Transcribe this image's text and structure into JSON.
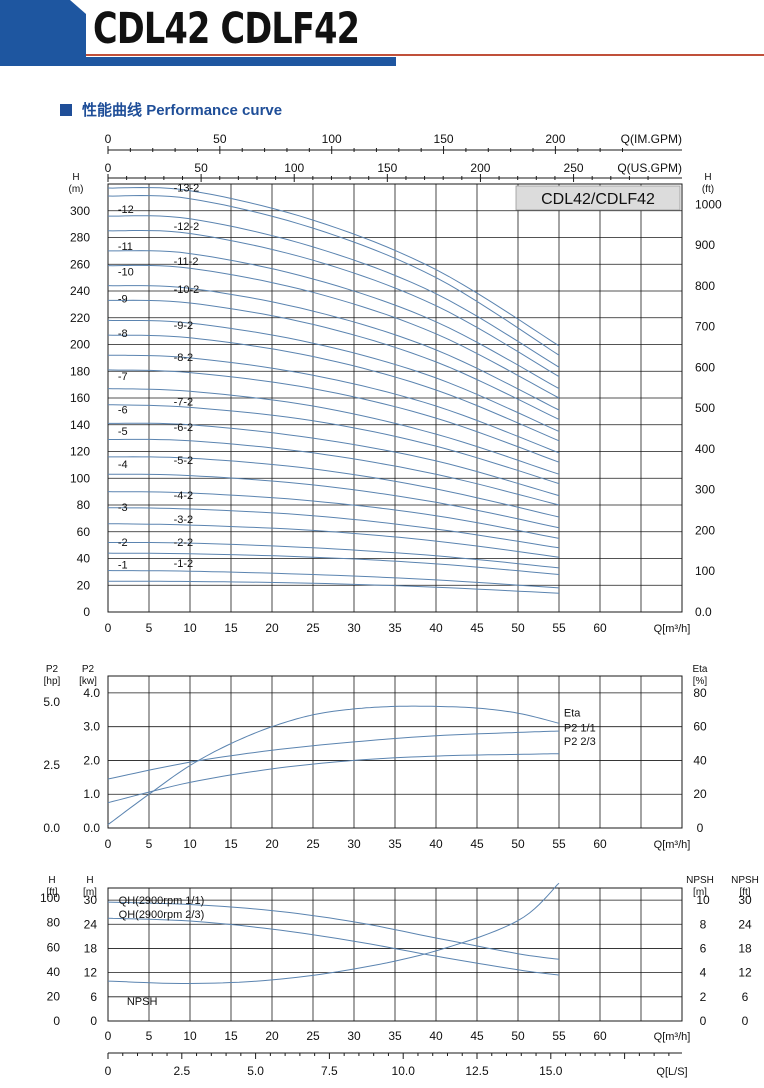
{
  "header": {
    "title": "CDL42 CDLF42"
  },
  "section": {
    "title_cn": "性能曲线",
    "title_en": "Performance curve"
  },
  "colors": {
    "curve": "#5b84b0",
    "grid": "#1a1a1a",
    "brand_blue": "#1e56a0",
    "accent_red": "#c0503a"
  },
  "chart_data": [
    {
      "type": "line",
      "model_label": "CDL42/CDLF42",
      "xlabel": "Q[m³/h]",
      "xlim": [
        0,
        70
      ],
      "x_ticks": [
        0,
        5,
        10,
        15,
        20,
        25,
        30,
        35,
        40,
        45,
        50,
        55,
        60
      ],
      "top_axis_im": {
        "label": "Q(IM.GPM)",
        "ticks": [
          0,
          50,
          100,
          150,
          200
        ]
      },
      "top_axis_us": {
        "label": "Q(US.GPM)",
        "ticks": [
          0,
          50,
          100,
          150,
          200,
          250
        ]
      },
      "y_left": {
        "label": "H",
        "unit": "(m)",
        "ticks": [
          0,
          20,
          40,
          60,
          80,
          100,
          120,
          140,
          160,
          180,
          200,
          220,
          240,
          260,
          280,
          300
        ],
        "ylim": [
          0,
          320
        ]
      },
      "y_right": {
        "label": "H",
        "unit": "(ft)",
        "tick_labels": [
          "0.0",
          "100",
          "200",
          "300",
          "400",
          "500",
          "600",
          "700",
          "800",
          "900",
          "1000"
        ]
      },
      "series": [
        {
          "name": "-1",
          "values": [
            [
              0,
              31
            ],
            [
              10,
              30.5
            ],
            [
              25,
              28
            ],
            [
              40,
              24
            ],
            [
              55,
              18
            ]
          ]
        },
        {
          "name": "-1-2",
          "values": [
            [
              0,
              23
            ],
            [
              10,
              22.8
            ],
            [
              25,
              21.5
            ],
            [
              40,
              18.5
            ],
            [
              55,
              14
            ]
          ]
        },
        {
          "name": "-2",
          "values": [
            [
              0,
              52
            ],
            [
              10,
              51.5
            ],
            [
              25,
              48
            ],
            [
              40,
              42
            ],
            [
              55,
              33
            ]
          ]
        },
        {
          "name": "-2-2",
          "values": [
            [
              0,
              44
            ],
            [
              10,
              43.5
            ],
            [
              25,
              41
            ],
            [
              40,
              36
            ],
            [
              55,
              28
            ]
          ]
        },
        {
          "name": "-3",
          "values": [
            [
              0,
              78
            ],
            [
              10,
              77
            ],
            [
              25,
              72
            ],
            [
              40,
              62
            ],
            [
              55,
              48
            ]
          ]
        },
        {
          "name": "-3-2",
          "values": [
            [
              0,
              66
            ],
            [
              10,
              65
            ],
            [
              25,
              61
            ],
            [
              40,
              53
            ],
            [
              55,
              41
            ]
          ]
        },
        {
          "name": "-4",
          "values": [
            [
              0,
              103
            ],
            [
              10,
              102
            ],
            [
              25,
              95
            ],
            [
              40,
              82
            ],
            [
              55,
              63
            ]
          ]
        },
        {
          "name": "-4-2",
          "values": [
            [
              0,
              90
            ],
            [
              10,
              89
            ],
            [
              25,
              83
            ],
            [
              40,
              72
            ],
            [
              55,
              55
            ]
          ]
        },
        {
          "name": "-5",
          "values": [
            [
              0,
              129
            ],
            [
              10,
              128
            ],
            [
              25,
              119
            ],
            [
              40,
              103
            ],
            [
              55,
              80
            ]
          ]
        },
        {
          "name": "-5-2",
          "values": [
            [
              0,
              116
            ],
            [
              10,
              115
            ],
            [
              25,
              107
            ],
            [
              40,
              92
            ],
            [
              55,
              71
            ]
          ]
        },
        {
          "name": "-6",
          "values": [
            [
              0,
              155
            ],
            [
              10,
              153
            ],
            [
              25,
              143
            ],
            [
              40,
              124
            ],
            [
              55,
              96
            ]
          ]
        },
        {
          "name": "-6-2",
          "values": [
            [
              0,
              141
            ],
            [
              10,
              140
            ],
            [
              25,
              130
            ],
            [
              40,
              113
            ],
            [
              55,
              87
            ]
          ]
        },
        {
          "name": "-7",
          "values": [
            [
              0,
              181
            ],
            [
              10,
              179
            ],
            [
              25,
              167
            ],
            [
              40,
              145
            ],
            [
              55,
              112
            ]
          ]
        },
        {
          "name": "-7-2",
          "values": [
            [
              0,
              167
            ],
            [
              10,
              165
            ],
            [
              25,
              154
            ],
            [
              40,
              133
            ],
            [
              55,
              103
            ]
          ]
        },
        {
          "name": "-8",
          "values": [
            [
              0,
              207
            ],
            [
              10,
              205
            ],
            [
              25,
              191
            ],
            [
              40,
              166
            ],
            [
              55,
              128
            ]
          ]
        },
        {
          "name": "-8-2",
          "values": [
            [
              0,
              192
            ],
            [
              10,
              190
            ],
            [
              25,
              177
            ],
            [
              40,
              154
            ],
            [
              55,
              119
            ]
          ]
        },
        {
          "name": "-9",
          "values": [
            [
              0,
              233
            ],
            [
              10,
              231
            ],
            [
              25,
              215
            ],
            [
              40,
              187
            ],
            [
              55,
              144
            ]
          ]
        },
        {
          "name": "-9-2",
          "values": [
            [
              0,
              218
            ],
            [
              10,
              216
            ],
            [
              25,
              201
            ],
            [
              40,
              175
            ],
            [
              55,
              135
            ]
          ]
        },
        {
          "name": "-10",
          "values": [
            [
              0,
              259
            ],
            [
              10,
              257
            ],
            [
              25,
              239
            ],
            [
              40,
              208
            ],
            [
              55,
              160
            ]
          ]
        },
        {
          "name": "-10-2",
          "values": [
            [
              0,
              244
            ],
            [
              10,
              242
            ],
            [
              25,
              225
            ],
            [
              40,
              196
            ],
            [
              55,
              151
            ]
          ]
        },
        {
          "name": "-11",
          "values": [
            [
              0,
              285
            ],
            [
              10,
              283
            ],
            [
              25,
              263
            ],
            [
              40,
              229
            ],
            [
              55,
              176
            ]
          ]
        },
        {
          "name": "-11-2",
          "values": [
            [
              0,
              270
            ],
            [
              10,
              268
            ],
            [
              25,
              249
            ],
            [
              40,
              217
            ],
            [
              55,
              167
            ]
          ]
        },
        {
          "name": "-12",
          "values": [
            [
              0,
              311
            ],
            [
              10,
              309
            ],
            [
              25,
              287
            ],
            [
              40,
              250
            ],
            [
              55,
              192
            ]
          ]
        },
        {
          "name": "-12-2",
          "values": [
            [
              0,
              296
            ],
            [
              10,
              294
            ],
            [
              25,
              273
            ],
            [
              40,
              238
            ],
            [
              55,
              183
            ]
          ]
        },
        {
          "name": "-13-2",
          "values": [
            [
              0,
              317
            ],
            [
              10,
              315
            ],
            [
              25,
              293
            ],
            [
              40,
              256
            ],
            [
              55,
              199
            ]
          ]
        }
      ],
      "curve_labels": [
        {
          "text": "-1",
          "x": 1.2,
          "y": 31
        },
        {
          "text": "-1-2",
          "x": 8,
          "y": 32
        },
        {
          "text": "-2",
          "x": 1.2,
          "y": 48
        },
        {
          "text": "-2-2",
          "x": 8,
          "y": 48
        },
        {
          "text": "-3",
          "x": 1.2,
          "y": 74
        },
        {
          "text": "-3-2",
          "x": 8,
          "y": 65
        },
        {
          "text": "-4",
          "x": 1.2,
          "y": 106
        },
        {
          "text": "-4-2",
          "x": 8,
          "y": 83
        },
        {
          "text": "-5",
          "x": 1.2,
          "y": 131
        },
        {
          "text": "-5-2",
          "x": 8,
          "y": 109
        },
        {
          "text": "-6",
          "x": 1.2,
          "y": 147
        },
        {
          "text": "-6-2",
          "x": 8,
          "y": 134
        },
        {
          "text": "-7",
          "x": 1.2,
          "y": 172
        },
        {
          "text": "-7-2",
          "x": 8,
          "y": 153
        },
        {
          "text": "-8",
          "x": 1.2,
          "y": 204
        },
        {
          "text": "-8-2",
          "x": 8,
          "y": 186
        },
        {
          "text": "-9",
          "x": 1.2,
          "y": 230
        },
        {
          "text": "-9-2",
          "x": 8,
          "y": 210
        },
        {
          "text": "-10",
          "x": 1.2,
          "y": 250
        },
        {
          "text": "-10-2",
          "x": 8,
          "y": 237
        },
        {
          "text": "-11",
          "x": 1.2,
          "y": 269
        },
        {
          "text": "-11-2",
          "x": 8,
          "y": 258
        },
        {
          "text": "-12",
          "x": 1.2,
          "y": 297
        },
        {
          "text": "-12-2",
          "x": 8,
          "y": 284
        },
        {
          "text": "-13-2",
          "x": 8,
          "y": 313
        }
      ]
    },
    {
      "type": "line",
      "xlabel": "Q[m³/h]",
      "xlim": [
        0,
        70
      ],
      "x_ticks": [
        0,
        5,
        10,
        15,
        20,
        25,
        30,
        35,
        40,
        45,
        50,
        55,
        60
      ],
      "y_left_hp": {
        "label": "P2",
        "unit": "[hp]",
        "tick_labels": [
          "0.0",
          "2.5",
          "5.0"
        ]
      },
      "y_left_kw": {
        "label": "P2",
        "unit": "[kw]",
        "ticks": [
          0,
          1,
          2,
          3,
          4
        ],
        "tick_labels": [
          "0.0",
          "1.0",
          "2.0",
          "3.0",
          "4.0"
        ],
        "ylim": [
          0,
          4.5
        ]
      },
      "y_right": {
        "label": "Eta",
        "unit": "[%]",
        "ticks": [
          0,
          20,
          40,
          60,
          80
        ]
      },
      "series": [
        {
          "name": "Eta",
          "axis": "eta",
          "values": [
            [
              0,
              2
            ],
            [
              5,
              20
            ],
            [
              10,
              37
            ],
            [
              15,
              50
            ],
            [
              20,
              60
            ],
            [
              25,
              67
            ],
            [
              30,
              70.5
            ],
            [
              35,
              72
            ],
            [
              40,
              72
            ],
            [
              45,
              71
            ],
            [
              50,
              68
            ],
            [
              55,
              62
            ]
          ]
        },
        {
          "name": "P2 1/1",
          "axis": "kw",
          "values": [
            [
              0,
              1.45
            ],
            [
              10,
              1.95
            ],
            [
              20,
              2.3
            ],
            [
              30,
              2.55
            ],
            [
              40,
              2.73
            ],
            [
              50,
              2.83
            ],
            [
              55,
              2.87
            ]
          ]
        },
        {
          "name": "P2 2/3",
          "axis": "kw",
          "values": [
            [
              0,
              0.75
            ],
            [
              10,
              1.35
            ],
            [
              20,
              1.75
            ],
            [
              30,
              2.0
            ],
            [
              40,
              2.13
            ],
            [
              50,
              2.18
            ],
            [
              55,
              2.2
            ]
          ]
        }
      ],
      "labels": {
        "eta": "Eta",
        "p2_full": "P2     1/1",
        "p2_two": "P2     2/3"
      }
    },
    {
      "type": "line",
      "xlabel": "Q[m³/h]",
      "xlim": [
        0,
        70
      ],
      "x_ticks": [
        0,
        5,
        10,
        15,
        20,
        25,
        30,
        35,
        40,
        45,
        50,
        55,
        60
      ],
      "x2label": "Q[L/S]",
      "x2_ticks": [
        "0",
        "2.5",
        "5.0",
        "7.5",
        "10.0",
        "12.5",
        "15.0"
      ],
      "y_left_ft": {
        "label": "H",
        "unit": "[ft]",
        "tick_labels": [
          "0",
          "20",
          "40",
          "60",
          "80",
          "100"
        ]
      },
      "y_left_m": {
        "label": "H",
        "unit": "[m]",
        "ticks": [
          0,
          6,
          12,
          18,
          24,
          30
        ],
        "ylim": [
          0,
          33
        ]
      },
      "y_right_m": {
        "label": "NPSH",
        "unit": "[m]",
        "tick_labels": [
          "0",
          "2",
          "4",
          "6",
          "8",
          "10"
        ]
      },
      "y_right_ft": {
        "label": "NPSH",
        "unit": "[ft]",
        "tick_labels": [
          "0",
          "6",
          "12",
          "18",
          "24",
          "30"
        ]
      },
      "series": [
        {
          "name": "QH(2900rpm 1/1)",
          "values": [
            [
              0,
              29.5
            ],
            [
              10,
              28.9
            ],
            [
              20,
              27.4
            ],
            [
              30,
              24.6
            ],
            [
              40,
              20.6
            ],
            [
              50,
              16.7
            ],
            [
              55,
              15.3
            ]
          ]
        },
        {
          "name": "QH(2900rpm 2/3)",
          "values": [
            [
              0,
              25.5
            ],
            [
              10,
              24.8
            ],
            [
              20,
              22.8
            ],
            [
              30,
              19.8
            ],
            [
              40,
              16.1
            ],
            [
              50,
              12.7
            ],
            [
              55,
              11.4
            ]
          ]
        },
        {
          "name": "NPSH",
          "values": [
            [
              0,
              3.3
            ],
            [
              10,
              3.1
            ],
            [
              20,
              3.4
            ],
            [
              30,
              4.3
            ],
            [
              40,
              5.8
            ],
            [
              50,
              8.3
            ],
            [
              55,
              11.4
            ]
          ]
        }
      ]
    }
  ]
}
